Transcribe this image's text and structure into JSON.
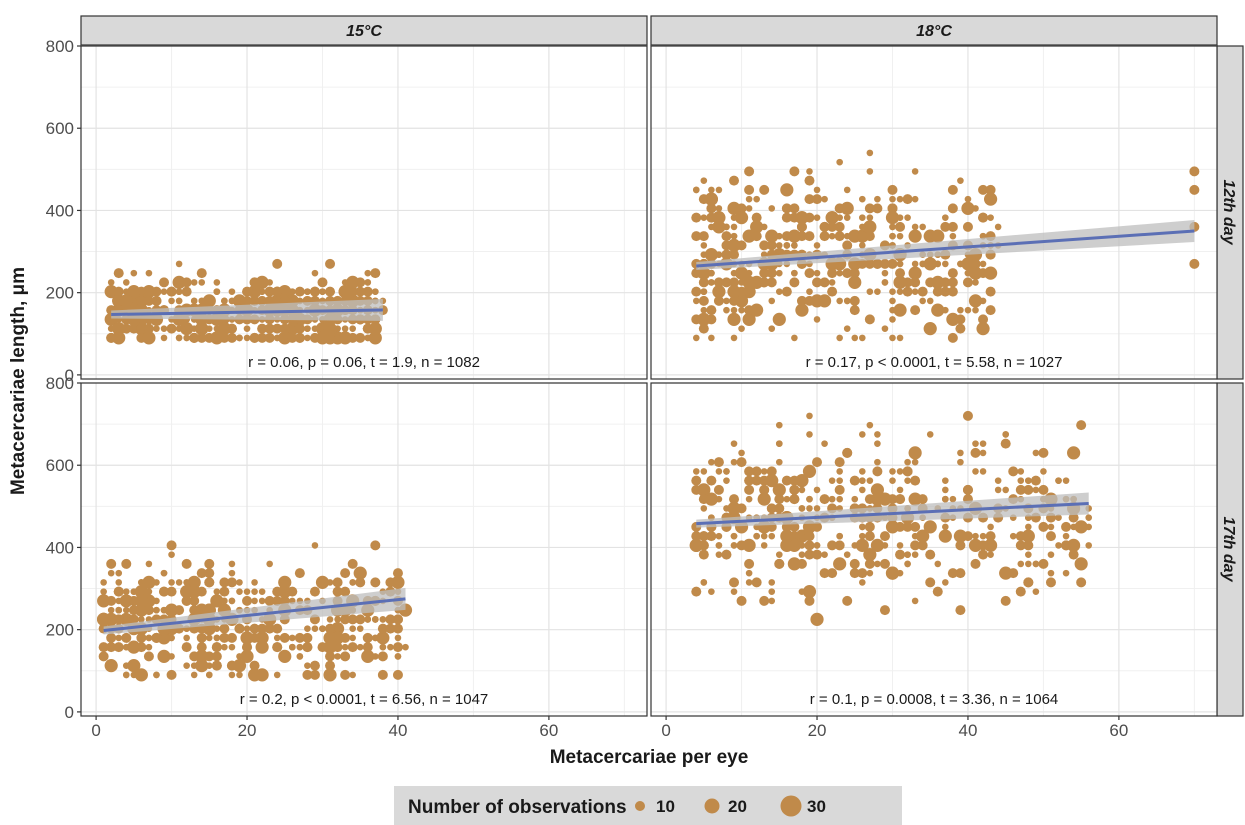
{
  "chart_data": {
    "type": "scatter",
    "xlabel": "Metacercariae per eye",
    "ylabel": "Metacercariae length,  μm",
    "xlim": [
      -2,
      73
    ],
    "ylim": [
      -10,
      800
    ],
    "x_ticks": [
      0,
      20,
      40,
      60
    ],
    "y_ticks": [
      0,
      200,
      400,
      600,
      800
    ],
    "grid": true,
    "col_facets": [
      "15°C",
      "18°C"
    ],
    "row_facets": [
      "12th day",
      "17th day"
    ],
    "point_color": "#c08a4a",
    "line_color": "#5b6fb5",
    "band_color": "#bdbdbd",
    "panels": [
      {
        "col": "15°C",
        "row": "12th day",
        "annotation": "r = 0.06, p = 0.06, t = 1.9, n = 1082",
        "x_range": [
          2,
          38
        ],
        "y_center": 150,
        "y_spread": 45,
        "y_min": 90,
        "y_max": 315,
        "n_points": 520,
        "fit": {
          "x0": 2,
          "y0": 147,
          "x1": 38,
          "y1": 158
        }
      },
      {
        "col": "18°C",
        "row": "12th day",
        "annotation": "r = 0.17, p < 0.0001, t = 5.58, n = 1027",
        "x_range": [
          4,
          44
        ],
        "y_center": 290,
        "y_spread": 90,
        "y_min": 90,
        "y_max": 540,
        "n_points": 480,
        "fit": {
          "x0": 4,
          "y0": 265,
          "x1": 70,
          "y1": 350
        },
        "extra_points": [
          [
            70,
            495
          ],
          [
            70,
            450
          ],
          [
            70,
            360
          ],
          [
            70,
            270
          ]
        ]
      },
      {
        "col": "15°C",
        "row": "17th day",
        "annotation": "r = 0.2, p < 0.0001, t = 6.56, n = 1047",
        "x_range": [
          1,
          41
        ],
        "y_center": 220,
        "y_spread": 70,
        "y_min": 90,
        "y_max": 405,
        "n_points": 500,
        "fit": {
          "x0": 1,
          "y0": 198,
          "x1": 41,
          "y1": 275
        }
      },
      {
        "col": "18°C",
        "row": "17th day",
        "annotation": "r = 0.1, p = 0.0008, t = 3.36, n = 1064",
        "x_range": [
          4,
          56
        ],
        "y_center": 475,
        "y_spread": 95,
        "y_min": 180,
        "y_max": 765,
        "n_points": 500,
        "fit": {
          "x0": 4,
          "y0": 458,
          "x1": 56,
          "y1": 507
        }
      }
    ],
    "legend": {
      "title": "Number of observations",
      "position": "bottom",
      "items": [
        {
          "label": "10",
          "value": 10
        },
        {
          "label": "20",
          "value": 20
        },
        {
          "label": "30",
          "value": 30
        }
      ]
    }
  }
}
